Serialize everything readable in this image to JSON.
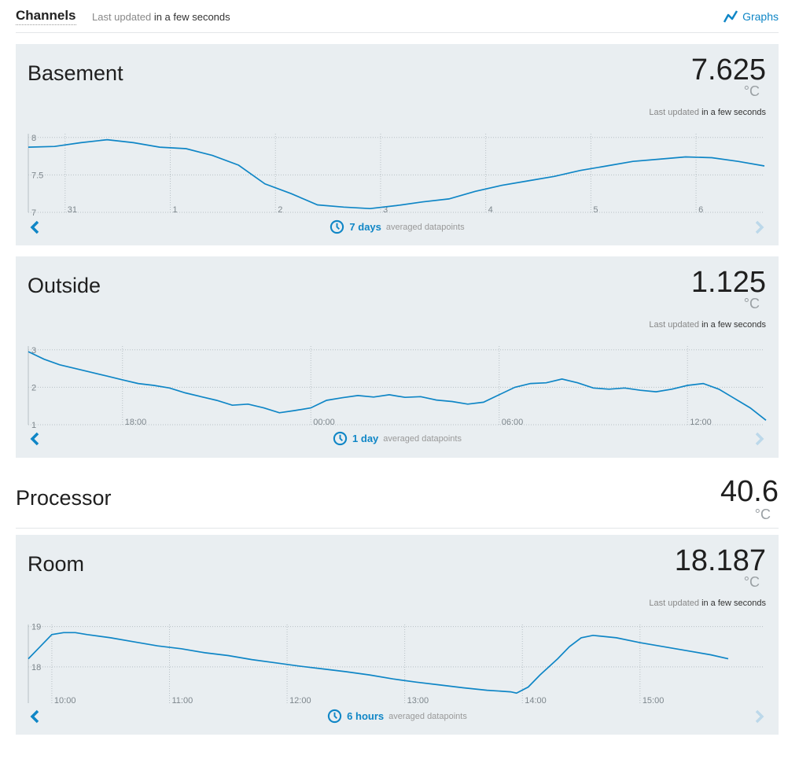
{
  "header": {
    "title": "Channels",
    "updated_label": "Last updated",
    "updated_time": "in a few seconds",
    "graphs_label": "Graphs"
  },
  "colors": {
    "accent": "#0f86c6",
    "panel_bg": "#e9eef1"
  },
  "channels": [
    {
      "name": "Basement",
      "value": "7.625",
      "unit": "°C",
      "last_label": "Last updated",
      "last_time": "in a few seconds",
      "range": "7 days",
      "range_suffix": "averaged datapoints"
    },
    {
      "name": "Outside",
      "value": "1.125",
      "unit": "°C",
      "last_label": "Last updated",
      "last_time": "in a few seconds",
      "range": "1 day",
      "range_suffix": "averaged datapoints"
    },
    {
      "name": "Processor",
      "value": "40.6",
      "unit": "°C"
    },
    {
      "name": "Room",
      "value": "18.187",
      "unit": "°C",
      "last_label": "Last updated",
      "last_time": "in a few seconds",
      "range": "6 hours",
      "range_suffix": "averaged datapoints"
    }
  ],
  "chart_data": [
    {
      "type": "line",
      "channel": "Basement",
      "y_ticks": [
        "8",
        "7.5",
        "7"
      ],
      "y_tick_values": [
        8,
        7.5,
        7
      ],
      "ylim": [
        7,
        8.05
      ],
      "x_ticks": [
        "31",
        "1",
        "2",
        "3",
        "4",
        "5",
        "6"
      ],
      "x_tick_values": [
        0.35,
        1.35,
        2.35,
        3.35,
        4.35,
        5.35,
        6.35
      ],
      "xlim": [
        0,
        7
      ],
      "grid": true,
      "series": [
        {
          "x": [
            0,
            0.25,
            0.5,
            0.75,
            1,
            1.25,
            1.5,
            1.75,
            2,
            2.25,
            2.5,
            2.75,
            3,
            3.25,
            3.5,
            3.75,
            4,
            4.25,
            4.5,
            4.75,
            5,
            5.25,
            5.5,
            5.75,
            6,
            6.25,
            6.5,
            6.75,
            7
          ],
          "y": [
            7.87,
            7.88,
            7.93,
            7.97,
            7.93,
            7.87,
            7.85,
            7.76,
            7.63,
            7.38,
            7.25,
            7.1,
            7.07,
            7.05,
            7.09,
            7.14,
            7.18,
            7.28,
            7.36,
            7.42,
            7.48,
            7.56,
            7.62,
            7.68,
            7.71,
            7.74,
            7.73,
            7.68,
            7.62
          ]
        }
      ]
    },
    {
      "type": "line",
      "channel": "Outside",
      "y_ticks": [
        "3",
        "2",
        "1"
      ],
      "y_tick_values": [
        3,
        2,
        1
      ],
      "ylim": [
        1,
        3.1
      ],
      "x_ticks": [
        "18:00",
        "00:00",
        "06:00",
        "12:00"
      ],
      "x_tick_values": [
        2,
        8,
        14,
        20
      ],
      "xlim": [
        -1,
        22.5
      ],
      "grid": true,
      "series": [
        {
          "x": [
            -1,
            -0.5,
            0,
            0.5,
            1,
            1.5,
            2,
            2.5,
            3,
            3.5,
            4,
            4.5,
            5,
            5.5,
            6,
            6.5,
            7,
            7.5,
            8,
            8.5,
            9,
            9.5,
            10,
            10.5,
            11,
            11.5,
            12,
            12.5,
            13,
            13.5,
            14,
            14.5,
            15,
            15.5,
            16,
            16.5,
            17,
            17.5,
            18,
            18.5,
            19,
            19.5,
            20,
            20.5,
            21,
            21.5,
            22,
            22.5
          ],
          "y": [
            2.95,
            2.75,
            2.6,
            2.5,
            2.4,
            2.3,
            2.2,
            2.1,
            2.05,
            1.98,
            1.85,
            1.75,
            1.65,
            1.52,
            1.55,
            1.45,
            1.32,
            1.38,
            1.45,
            1.65,
            1.72,
            1.78,
            1.74,
            1.8,
            1.73,
            1.75,
            1.66,
            1.62,
            1.55,
            1.6,
            1.8,
            2.0,
            2.1,
            2.12,
            2.22,
            2.12,
            1.98,
            1.95,
            1.98,
            1.92,
            1.88,
            1.95,
            2.05,
            2.1,
            1.95,
            1.7,
            1.45,
            1.12
          ]
        }
      ]
    },
    {
      "type": "line",
      "channel": "Room",
      "y_ticks": [
        "19",
        "18"
      ],
      "y_tick_values": [
        19,
        18
      ],
      "ylim": [
        17.1,
        19.05
      ],
      "x_ticks": [
        "10:00",
        "11:00",
        "12:00",
        "13:00",
        "14:00",
        "15:00"
      ],
      "x_tick_values": [
        0.7,
        1.7,
        2.7,
        3.7,
        4.7,
        5.7
      ],
      "xlim": [
        0.5,
        6.45
      ],
      "grid": true,
      "series": [
        {
          "x": [
            0.5,
            0.6,
            0.7,
            0.8,
            0.9,
            1.0,
            1.2,
            1.4,
            1.6,
            1.8,
            2.0,
            2.2,
            2.4,
            2.6,
            2.8,
            3.0,
            3.2,
            3.4,
            3.6,
            3.8,
            4.0,
            4.2,
            4.4,
            4.6,
            4.65,
            4.75,
            4.85,
            5.0,
            5.1,
            5.2,
            5.3,
            5.5,
            5.7,
            5.9,
            6.1,
            6.3,
            6.45
          ],
          "y": [
            18.2,
            18.5,
            18.8,
            18.85,
            18.85,
            18.8,
            18.72,
            18.62,
            18.52,
            18.45,
            18.35,
            18.28,
            18.18,
            18.1,
            18.02,
            17.95,
            17.88,
            17.8,
            17.7,
            17.62,
            17.55,
            17.48,
            17.42,
            17.38,
            17.35,
            17.5,
            17.8,
            18.2,
            18.5,
            18.72,
            18.78,
            18.72,
            18.6,
            18.5,
            18.4,
            18.3,
            18.2
          ]
        }
      ]
    }
  ]
}
